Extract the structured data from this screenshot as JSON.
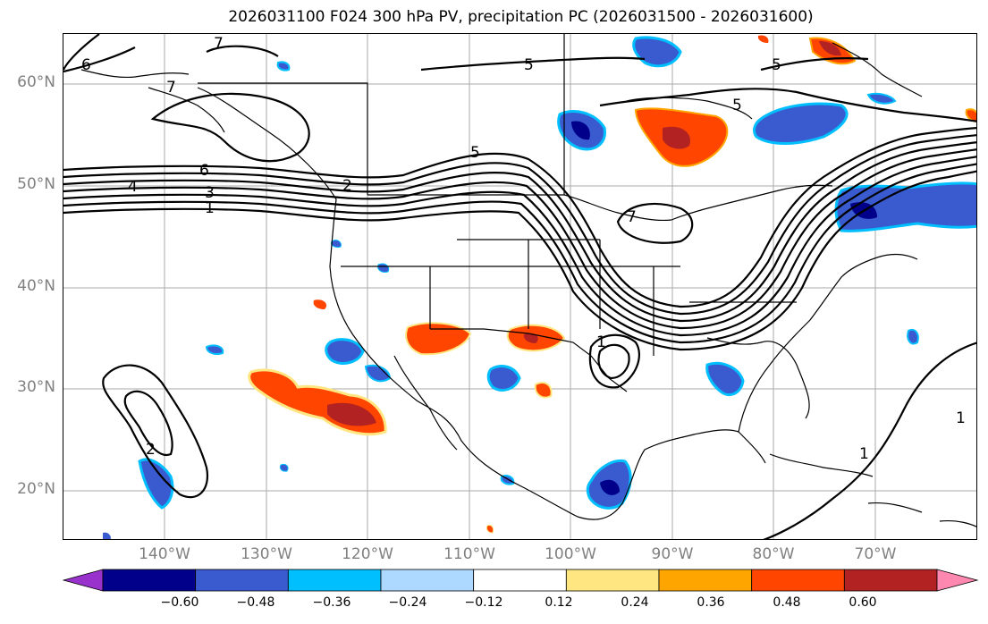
{
  "title": "2026031100 F024 300 hPa PV, precipitation PC (2026031500 - 2026031600)",
  "axes": {
    "lat_labels": [
      "60°N",
      "50°N",
      "40°N",
      "30°N",
      "20°N"
    ],
    "lon_labels": [
      "140°W",
      "130°W",
      "120°W",
      "110°W",
      "100°W",
      "90°W",
      "80°W",
      "70°W"
    ]
  },
  "colorbar": {
    "ticks": [
      "−0.60",
      "−0.48",
      "−0.36",
      "−0.24",
      "−0.12",
      "0.12",
      "0.24",
      "0.36",
      "0.48",
      "0.60"
    ],
    "colors": [
      "#9932cc",
      "#00008b",
      "#3a5bd0",
      "#00bfff",
      "#add8ff",
      "#ffffff",
      "#ffe680",
      "#ffa500",
      "#ff4500",
      "#b22222",
      "#ff88b0"
    ]
  },
  "contour_labels": [
    "5",
    "5",
    "5",
    "5",
    "6",
    "6",
    "7",
    "7",
    "7",
    "4",
    "3",
    "2",
    "1",
    "1",
    "1",
    "1",
    "2"
  ]
}
